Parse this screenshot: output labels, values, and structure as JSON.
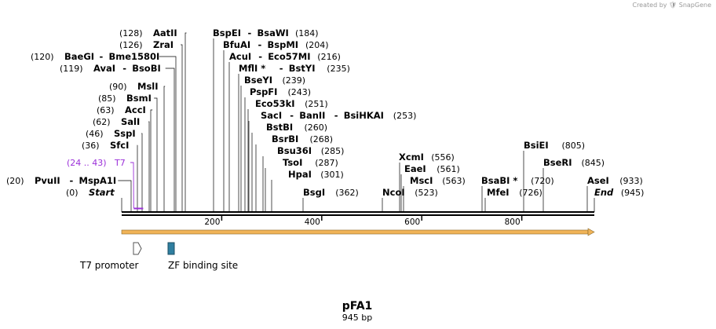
{
  "credit": {
    "prefix": "Created by",
    "brand": "SnapGene",
    "icon": "snapgene-logo-icon"
  },
  "plasmid": {
    "name": "pFA1",
    "length_label": "945 bp",
    "length_bp": 945
  },
  "axis": {
    "ticks": [
      200,
      400,
      600,
      800
    ]
  },
  "colors": {
    "text": "#000000",
    "t7": "#9b30d9",
    "feature_arrow": "#f0b357",
    "zf_site": "#2f7fa0",
    "line": "#000000"
  },
  "sites": [
    {
      "id": "start",
      "pos": "(0)",
      "bp": 0,
      "enzymes": [
        "Start"
      ],
      "italic": true
    },
    {
      "id": "pvuii",
      "pos": "(20)",
      "bp": 20,
      "enzymes": [
        "PvuII",
        "MspA1I"
      ]
    },
    {
      "id": "sfci",
      "pos": "(36)",
      "bp": 36,
      "enzymes": [
        "SfcI"
      ]
    },
    {
      "id": "sspi",
      "pos": "(46)",
      "bp": 46,
      "enzymes": [
        "SspI"
      ]
    },
    {
      "id": "sali",
      "pos": "(62)",
      "bp": 62,
      "enzymes": [
        "SalI"
      ]
    },
    {
      "id": "acci",
      "pos": "(63)",
      "bp": 63,
      "enzymes": [
        "AccI"
      ]
    },
    {
      "id": "bsmi",
      "pos": "(85)",
      "bp": 85,
      "enzymes": [
        "BsmI"
      ]
    },
    {
      "id": "msli",
      "pos": "(90)",
      "bp": 90,
      "enzymes": [
        "MslI"
      ]
    },
    {
      "id": "avai",
      "pos": "(119)",
      "bp": 119,
      "enzymes": [
        "AvaI",
        "BsoBI"
      ]
    },
    {
      "id": "baegi",
      "pos": "(120)",
      "bp": 120,
      "enzymes": [
        "BaeGI",
        "Bme1580I"
      ]
    },
    {
      "id": "zrai",
      "pos": "(126)",
      "bp": 126,
      "enzymes": [
        "ZraI"
      ]
    },
    {
      "id": "aatii",
      "pos": "(128)",
      "bp": 128,
      "enzymes": [
        "AatII"
      ]
    },
    {
      "id": "bspei",
      "pos": "(184)",
      "bp": 184,
      "enzymes": [
        "BspEI",
        "BsaWI"
      ]
    },
    {
      "id": "bfuai",
      "pos": "(204)",
      "bp": 204,
      "enzymes": [
        "BfuAI",
        "BspMI"
      ]
    },
    {
      "id": "acui",
      "pos": "(216)",
      "bp": 216,
      "enzymes": [
        "AcuI",
        "Eco57MI"
      ]
    },
    {
      "id": "mfli",
      "pos": "(235)",
      "bp": 235,
      "enzymes": [
        "MflI *",
        "BstYI"
      ]
    },
    {
      "id": "bseyi",
      "pos": "(239)",
      "bp": 239,
      "enzymes": [
        "BseYI"
      ]
    },
    {
      "id": "pspfi",
      "pos": "(243)",
      "bp": 243,
      "enzymes": [
        "PspFI"
      ]
    },
    {
      "id": "eco53ki",
      "pos": "(251)",
      "bp": 251,
      "enzymes": [
        "Eco53kI"
      ]
    },
    {
      "id": "saci",
      "pos": "(253)",
      "bp": 253,
      "enzymes": [
        "SacI",
        "BanII",
        "BsiHKAI"
      ]
    },
    {
      "id": "bstbi",
      "pos": "(260)",
      "bp": 260,
      "enzymes": [
        "BstBI"
      ]
    },
    {
      "id": "bsrbi",
      "pos": "(268)",
      "bp": 268,
      "enzymes": [
        "BsrBI"
      ]
    },
    {
      "id": "bsu36i",
      "pos": "(285)",
      "bp": 285,
      "enzymes": [
        "Bsu36I"
      ]
    },
    {
      "id": "tsoi",
      "pos": "(287)",
      "bp": 287,
      "enzymes": [
        "TsoI"
      ]
    },
    {
      "id": "hpai",
      "pos": "(301)",
      "bp": 301,
      "enzymes": [
        "HpaI"
      ]
    },
    {
      "id": "bsgi",
      "pos": "(362)",
      "bp": 362,
      "enzymes": [
        "BsgI"
      ]
    },
    {
      "id": "ncoi",
      "pos": "(523)",
      "bp": 523,
      "enzymes": [
        "NcoI"
      ]
    },
    {
      "id": "xcmi",
      "pos": "(556)",
      "bp": 556,
      "enzymes": [
        "XcmI"
      ]
    },
    {
      "id": "eaei",
      "pos": "(561)",
      "bp": 561,
      "enzymes": [
        "EaeI"
      ]
    },
    {
      "id": "msci",
      "pos": "(563)",
      "bp": 563,
      "enzymes": [
        "MscI"
      ]
    },
    {
      "id": "bsabi",
      "pos": "(720)",
      "bp": 720,
      "enzymes": [
        "BsaBI *"
      ]
    },
    {
      "id": "mfei",
      "pos": "(726)",
      "bp": 726,
      "enzymes": [
        "MfeI"
      ]
    },
    {
      "id": "bsiei",
      "pos": "(805)",
      "bp": 805,
      "enzymes": [
        "BsiEI"
      ]
    },
    {
      "id": "bseri",
      "pos": "(845)",
      "bp": 845,
      "enzymes": [
        "BseRI"
      ]
    },
    {
      "id": "asei",
      "pos": "(933)",
      "bp": 933,
      "enzymes": [
        "AseI"
      ]
    },
    {
      "id": "end",
      "pos": "(945)",
      "bp": 945,
      "enzymes": [
        "End"
      ],
      "italic": true
    }
  ],
  "primer": {
    "range": "(24 .. 43)",
    "name": "T7",
    "start_bp": 24,
    "end_bp": 43
  },
  "features": [
    {
      "id": "t7-promoter",
      "label": "T7 promoter",
      "start_bp": 19,
      "end_bp": 37
    },
    {
      "id": "zf-binding-site",
      "label": "ZF binding site",
      "start_bp": 94,
      "end_bp": 106
    }
  ]
}
